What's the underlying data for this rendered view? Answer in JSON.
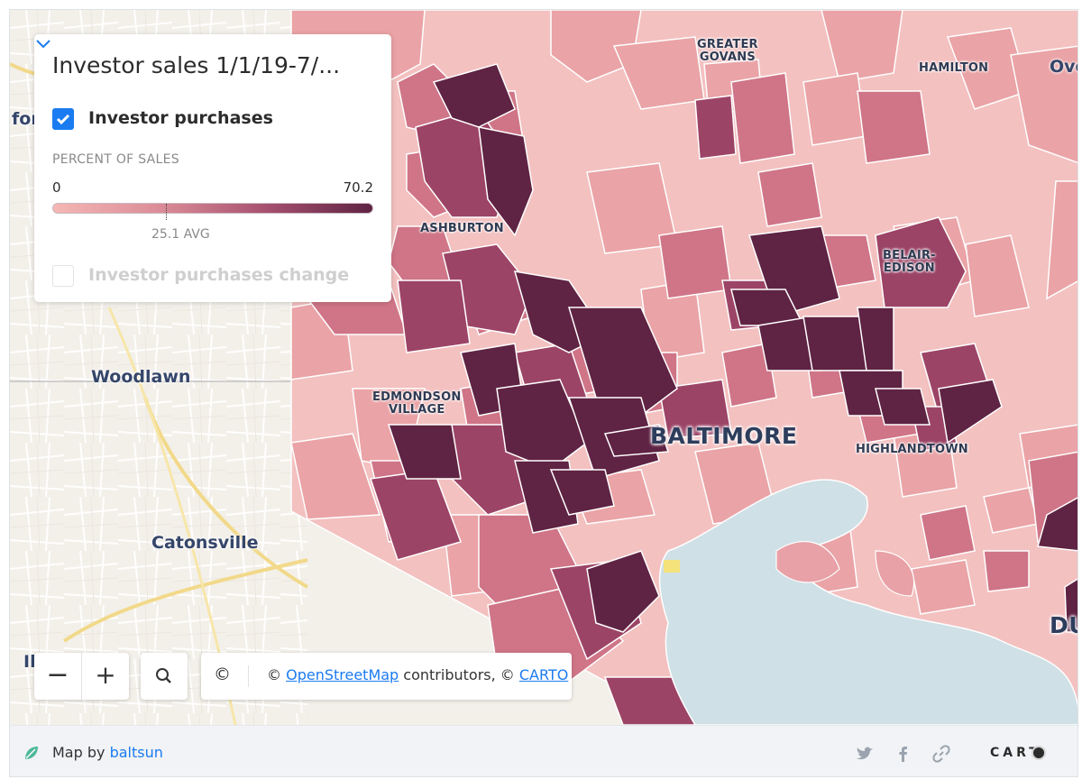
{
  "legend": {
    "title": "Investor sales 1/1/19-7/...",
    "layers": [
      {
        "label": "Investor purchases",
        "checked": true
      },
      {
        "label": "Investor purchases change",
        "checked": false
      }
    ],
    "metric_label": "PERCENT OF SALES",
    "range_min": "0",
    "range_max": "70.2",
    "avg_label": "25.1 AVG",
    "ramp_colors": [
      "#f4b7b4",
      "#dc8d98",
      "#a6506f",
      "#5f2343"
    ]
  },
  "map_labels": {
    "greater_govans": "GREATER\nGOVANS",
    "hamilton": "HAMILTON",
    "ove": "Ove",
    "for": "for",
    "ashburton": "ASHBURTON",
    "belair_edison": "BELAIR-\nEDISON",
    "woodlawn": "Woodlawn",
    "edmondson_village": "EDMONDSON\nVILLAGE",
    "baltimore": "BALTIMORE",
    "highlandtown": "HIGHLANDTOWN",
    "catonsville": "Catonsville",
    "du": "DU",
    "il": "Il"
  },
  "controls": {
    "zoom_out": "−",
    "zoom_in": "+",
    "copyright_symbol": "©",
    "attribution_prefix": "© ",
    "osm_link": "OpenStreetMap",
    "attribution_mid": " contributors, © ",
    "carto_link": "CARTO"
  },
  "footer": {
    "map_by": "Map by ",
    "author": "baltsun",
    "brand": "CART"
  },
  "icons": [
    "chevron-down-icon",
    "check-icon",
    "search-icon",
    "twitter-icon",
    "facebook-icon",
    "link-icon",
    "carto-logo-icon"
  ]
}
